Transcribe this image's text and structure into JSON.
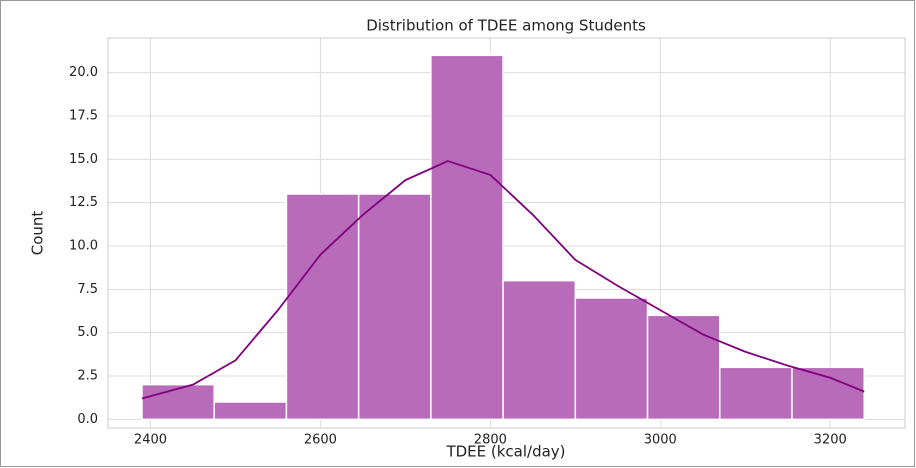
{
  "chart_data": {
    "type": "histogram",
    "title": "Distribution of TDEE among Students",
    "xlabel": "TDEE (kcal/day)",
    "ylabel": "Count",
    "bins": [
      2390,
      2475,
      2560,
      2645,
      2730,
      2815,
      2900,
      2985,
      3070,
      3155,
      3240
    ],
    "values": [
      2,
      1,
      13,
      13,
      21,
      8,
      7,
      6,
      3,
      3
    ],
    "color": "#b86bb8",
    "edgecolor": "#ffffff",
    "kde": {
      "color": "#800080",
      "x": [
        2390,
        2450,
        2500,
        2550,
        2600,
        2650,
        2700,
        2750,
        2800,
        2850,
        2900,
        2950,
        3000,
        3050,
        3100,
        3150,
        3200,
        3240
      ],
      "values": [
        1.2,
        2.0,
        3.4,
        6.3,
        9.5,
        11.8,
        13.8,
        14.9,
        14.1,
        11.8,
        9.2,
        7.7,
        6.3,
        4.9,
        3.9,
        3.1,
        2.4,
        1.6
      ]
    },
    "xlim": [
      2350,
      3288
    ],
    "ylim": [
      -0.5,
      22
    ],
    "xticks": [
      2400,
      2600,
      2800,
      3000,
      3200
    ],
    "yticks": [
      {
        "value": 0,
        "label": "0.0"
      },
      {
        "value": 2.5,
        "label": "2.5"
      },
      {
        "value": 5,
        "label": "5.0"
      },
      {
        "value": 7.5,
        "label": "7.5"
      },
      {
        "value": 10,
        "label": "10.0"
      },
      {
        "value": 12.5,
        "label": "12.5"
      },
      {
        "value": 15,
        "label": "15.0"
      },
      {
        "value": 17.5,
        "label": "17.5"
      },
      {
        "value": 20,
        "label": "20.0"
      }
    ],
    "grid": true
  }
}
